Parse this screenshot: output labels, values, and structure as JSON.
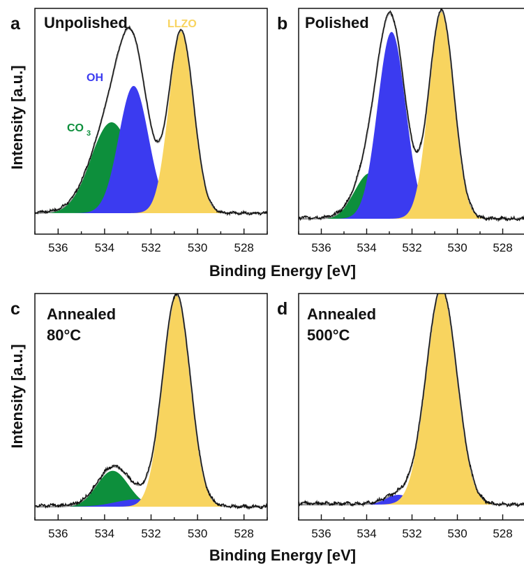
{
  "figure": {
    "xlabel": "Binding Energy [eV]",
    "ylabel": "Intensity [a.u.]"
  },
  "colors": {
    "CO3": "#0d8f3c",
    "OH": "#3b3bf0",
    "LLZO": "#f8d45f",
    "measured": "#111111",
    "fit": "#9a9a9a"
  },
  "labels": {
    "OH": "OH",
    "CO3_main": "CO",
    "CO3_sub": "3",
    "LLZO": "LLZO"
  },
  "chart_data": [
    {
      "panel": "a",
      "title": [
        "Unpolished"
      ],
      "type": "area",
      "xlim": [
        537,
        527
      ],
      "x_ticks": [
        536,
        534,
        532,
        530,
        528
      ],
      "xlabel": "",
      "ylabel": "Intensity [a.u.]",
      "components": [
        {
          "name": "CO3",
          "center": 533.7,
          "height": 0.5,
          "fwhm": 2.1
        },
        {
          "name": "OH",
          "center": 532.75,
          "height": 0.7,
          "fwhm": 1.5
        },
        {
          "name": "LLZO",
          "center": 530.7,
          "height": 1.0,
          "fwhm": 1.25
        }
      ]
    },
    {
      "panel": "b",
      "title": [
        "Polished"
      ],
      "type": "area",
      "xlim": [
        537,
        527
      ],
      "x_ticks": [
        536,
        534,
        532,
        530,
        528
      ],
      "xlabel": "Binding Energy [eV]",
      "ylabel": "",
      "components": [
        {
          "name": "CO3",
          "center": 533.85,
          "height": 0.22,
          "fwhm": 1.6
        },
        {
          "name": "OH",
          "center": 532.9,
          "height": 0.9,
          "fwhm": 1.45
        },
        {
          "name": "LLZO",
          "center": 530.7,
          "height": 1.0,
          "fwhm": 1.3
        }
      ]
    },
    {
      "panel": "c",
      "title": [
        "Annealed",
        "80°C"
      ],
      "type": "area",
      "xlim": [
        537,
        527
      ],
      "x_ticks": [
        536,
        534,
        532,
        530,
        528
      ],
      "xlabel": "",
      "ylabel": "Intensity [a.u.]",
      "components": [
        {
          "name": "CO3",
          "center": 533.65,
          "height": 0.17,
          "fwhm": 1.6
        },
        {
          "name": "OH",
          "center": 532.6,
          "height": 0.035,
          "fwhm": 2.2
        },
        {
          "name": "LLZO",
          "center": 530.9,
          "height": 1.0,
          "fwhm": 1.4
        }
      ]
    },
    {
      "panel": "d",
      "title": [
        "Annealed",
        "500°C"
      ],
      "type": "area",
      "xlim": [
        537,
        527
      ],
      "x_ticks": [
        536,
        534,
        532,
        530,
        528
      ],
      "xlabel": "Binding Energy [eV]",
      "ylabel": "",
      "components": [
        {
          "name": "OH",
          "center": 532.6,
          "height": 0.045,
          "fwhm": 1.4
        },
        {
          "name": "LLZO",
          "center": 530.7,
          "height": 1.0,
          "fwhm": 1.6
        }
      ]
    }
  ]
}
